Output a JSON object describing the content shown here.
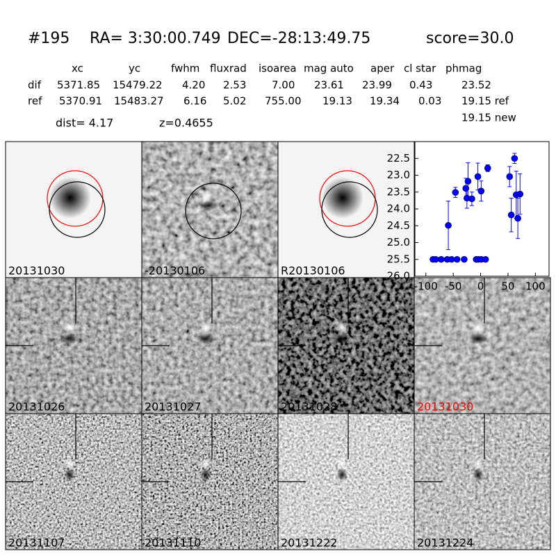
{
  "header": {
    "id": "#195",
    "ra": "RA= 3:30:00.749",
    "dec": "DEC=-28:13:49.75",
    "score": "score=30.0"
  },
  "table": {
    "columns": [
      "xc",
      "yc",
      "fwhm",
      "fluxrad",
      "isoarea",
      "mag auto",
      "aper",
      "cl star",
      "phmag"
    ],
    "rows": [
      [
        "dif",
        "5371.85",
        "15479.22",
        "4.20",
        "2.53",
        "7.00",
        "23.61",
        "23.99",
        "0.43",
        "23.52"
      ],
      [
        "ref",
        "5370.91",
        "15483.27",
        "6.16",
        "5.02",
        "755.00",
        "19.13",
        "19.34",
        "0.03",
        "19.15 ref"
      ]
    ],
    "extra": "19.15 new"
  },
  "dist": "dist=  4.17",
  "z": "z=0.4655",
  "panels": [
    "20131030",
    "-20130106",
    "R20130106",
    "20131026",
    "20131027",
    "20131028",
    "20131030",
    "20131107",
    "20131110",
    "20131222",
    "20131224"
  ],
  "chart_data": {
    "type": "scatter",
    "color": "#0000ff",
    "x": [
      -87,
      -82,
      -72,
      -61,
      -53,
      -43,
      -30,
      -8,
      -4,
      1,
      9,
      -59,
      -46,
      -27,
      -23,
      -25,
      -16,
      -5,
      1,
      13,
      53,
      56,
      62,
      65,
      68,
      72
    ],
    "values": [
      25.5,
      25.5,
      25.5,
      25.5,
      25.5,
      25.5,
      25.5,
      25.5,
      25.5,
      25.5,
      25.5,
      24.49,
      23.51,
      23.39,
      23.18,
      23.68,
      23.7,
      23.04,
      23.47,
      22.79,
      23.04,
      24.18,
      22.5,
      23.58,
      24.28,
      23.56
    ],
    "errors": [
      null,
      null,
      null,
      null,
      null,
      null,
      null,
      null,
      null,
      null,
      null,
      0.72,
      0.15,
      0.3,
      0.55,
      0.3,
      0.2,
      0.4,
      0.3,
      0.1,
      0.3,
      0.5,
      0.15,
      0.7,
      0.6,
      0.6
    ],
    "xlim": [
      -120,
      125
    ],
    "ylim": [
      26,
      22
    ],
    "xticks": [
      -100,
      -50,
      0,
      50,
      100
    ],
    "yticks": [
      22.5,
      {
        "value": 23,
        "label": "23.0"
      },
      23.5,
      {
        "value": 24,
        "label": "24.0"
      },
      24.5,
      {
        "value": 25,
        "label": "25.0"
      },
      25.5,
      {
        "value": 26,
        "label": "26.0"
      }
    ]
  }
}
